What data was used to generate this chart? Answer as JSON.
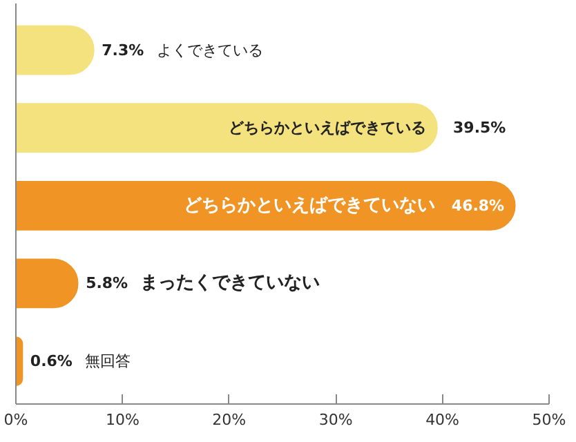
{
  "chart_data": {
    "type": "bar",
    "orientation": "horizontal",
    "categories": [
      "よくできている",
      "どちらかといえばできている",
      "どちらかといえばできていない",
      "まったくできていない",
      "無回答"
    ],
    "values": [
      7.3,
      39.5,
      46.8,
      5.8,
      0.6
    ],
    "colors": [
      "#f4e27e",
      "#f4e27e",
      "#ef9425",
      "#ef9425",
      "#ef9425"
    ],
    "value_labels": [
      "7.3%",
      "39.5%",
      "46.8%",
      "5.8%",
      "0.6%"
    ],
    "xlim": [
      0,
      50
    ],
    "xticks": [
      {
        "value": 0,
        "label": "0%"
      },
      {
        "value": 10,
        "label": "10%"
      },
      {
        "value": 20,
        "label": "20%"
      },
      {
        "value": 30,
        "label": "30%"
      },
      {
        "value": 40,
        "label": "40%"
      },
      {
        "value": 50,
        "label": "50%"
      }
    ],
    "tick_labels": "x",
    "grid": false
  }
}
